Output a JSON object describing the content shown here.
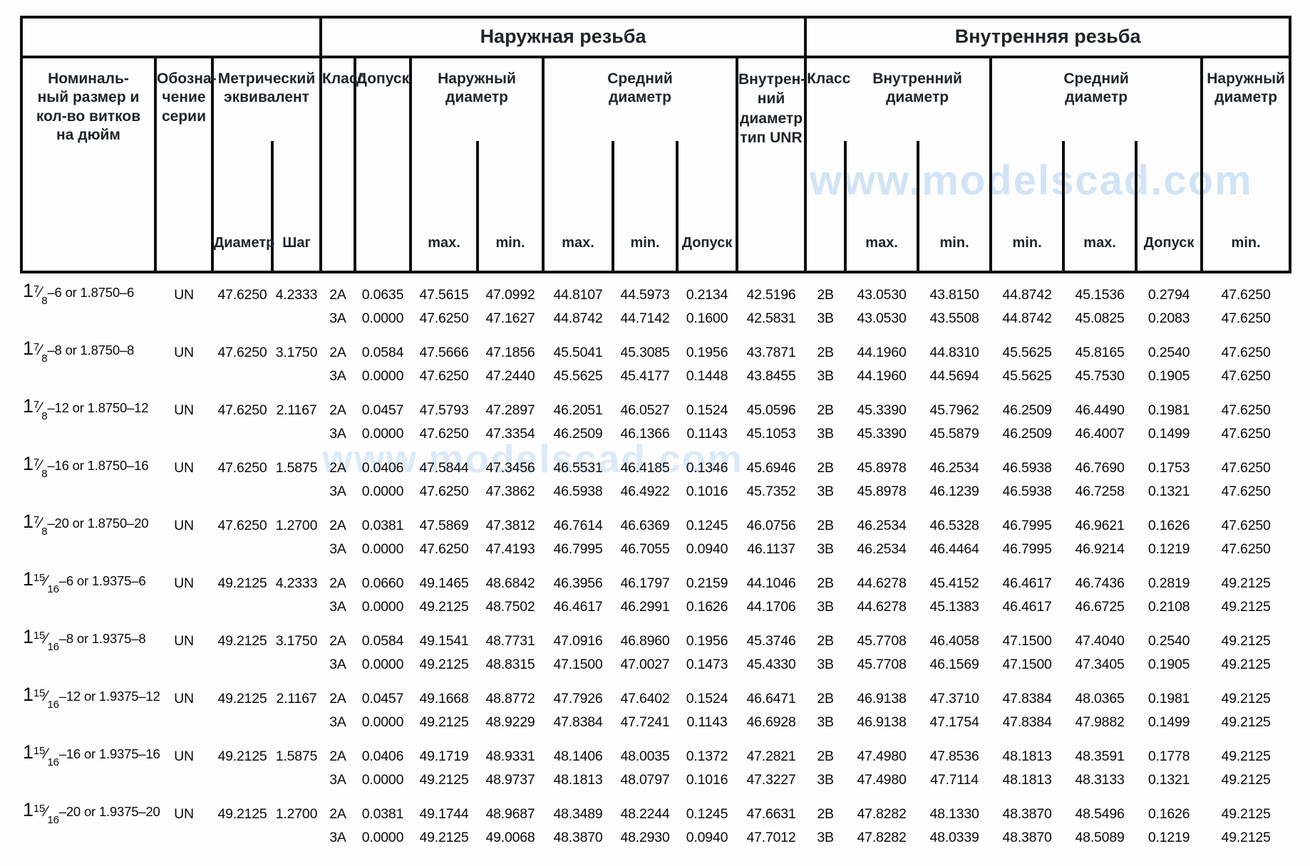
{
  "watermark": {
    "text": "www.modelscad.com",
    "color": "#a6cbee"
  },
  "header": {
    "external": "Наружная резьба",
    "internal": "Внутренняя резьба",
    "nominal_size": "Номиналь-\nный размер и\nкол-во витков\nна дюйм",
    "series": "Обозна-\nчение\nсерии",
    "metric": "Метрический\nэквивалент",
    "diameter_label": "Диаметр",
    "pitch_label": "Шаг",
    "class_label": "Класс",
    "tolerance_label": "Допуск",
    "ext_major": "Наружный\nдиаметр",
    "ext_pitch": "Средний\nдиаметр",
    "unr": "Внутрен-\nний\nдиаметр\nтип UNR",
    "int_minor": "Внутренний\nдиаметр",
    "int_pitch": "Средний\nдиаметр",
    "int_major": "Наружный\nдиаметр",
    "max": "max.",
    "min": "min."
  },
  "rows": [
    {
      "size": {
        "whole": "1",
        "num": "7",
        "den": "8",
        "suffix": "–6 or 1.8750–6"
      },
      "series": "UN",
      "metric_diameter": "47.6250",
      "metric_pitch": "4.2333",
      "lines": [
        {
          "ext_class": "2A",
          "ext_tol": "0.0635",
          "ext_major_max": "47.5615",
          "ext_major_min": "47.0992",
          "ext_pitch_max": "44.8107",
          "ext_pitch_min": "44.5973",
          "ext_pitch_tol": "0.2134",
          "ext_minor_unr": "42.5196",
          "int_class": "2B",
          "int_minor_max": "43.0530",
          "int_minor_min": "43.8150",
          "int_pitch_min": "44.8742",
          "int_pitch_max": "45.1536",
          "int_pitch_tol": "0.2794",
          "int_major_min": "47.6250"
        },
        {
          "ext_class": "3A",
          "ext_tol": "0.0000",
          "ext_major_max": "47.6250",
          "ext_major_min": "47.1627",
          "ext_pitch_max": "44.8742",
          "ext_pitch_min": "44.7142",
          "ext_pitch_tol": "0.1600",
          "ext_minor_unr": "42.5831",
          "int_class": "3B",
          "int_minor_max": "43.0530",
          "int_minor_min": "43.5508",
          "int_pitch_min": "44.8742",
          "int_pitch_max": "45.0825",
          "int_pitch_tol": "0.2083",
          "int_major_min": "47.6250"
        }
      ]
    },
    {
      "size": {
        "whole": "1",
        "num": "7",
        "den": "8",
        "suffix": "–8 or 1.8750–8"
      },
      "series": "UN",
      "metric_diameter": "47.6250",
      "metric_pitch": "3.1750",
      "lines": [
        {
          "ext_class": "2A",
          "ext_tol": "0.0584",
          "ext_major_max": "47.5666",
          "ext_major_min": "47.1856",
          "ext_pitch_max": "45.5041",
          "ext_pitch_min": "45.3085",
          "ext_pitch_tol": "0.1956",
          "ext_minor_unr": "43.7871",
          "int_class": "2B",
          "int_minor_max": "44.1960",
          "int_minor_min": "44.8310",
          "int_pitch_min": "45.5625",
          "int_pitch_max": "45.8165",
          "int_pitch_tol": "0.2540",
          "int_major_min": "47.6250"
        },
        {
          "ext_class": "3A",
          "ext_tol": "0.0000",
          "ext_major_max": "47.6250",
          "ext_major_min": "47.2440",
          "ext_pitch_max": "45.5625",
          "ext_pitch_min": "45.4177",
          "ext_pitch_tol": "0.1448",
          "ext_minor_unr": "43.8455",
          "int_class": "3B",
          "int_minor_max": "44.1960",
          "int_minor_min": "44.5694",
          "int_pitch_min": "45.5625",
          "int_pitch_max": "45.7530",
          "int_pitch_tol": "0.1905",
          "int_major_min": "47.6250"
        }
      ]
    },
    {
      "size": {
        "whole": "1",
        "num": "7",
        "den": "8",
        "suffix": "–12 or 1.8750–12"
      },
      "series": "UN",
      "metric_diameter": "47.6250",
      "metric_pitch": "2.1167",
      "lines": [
        {
          "ext_class": "2A",
          "ext_tol": "0.0457",
          "ext_major_max": "47.5793",
          "ext_major_min": "47.2897",
          "ext_pitch_max": "46.2051",
          "ext_pitch_min": "46.0527",
          "ext_pitch_tol": "0.1524",
          "ext_minor_unr": "45.0596",
          "int_class": "2B",
          "int_minor_max": "45.3390",
          "int_minor_min": "45.7962",
          "int_pitch_min": "46.2509",
          "int_pitch_max": "46.4490",
          "int_pitch_tol": "0.1981",
          "int_major_min": "47.6250"
        },
        {
          "ext_class": "3A",
          "ext_tol": "0.0000",
          "ext_major_max": "47.6250",
          "ext_major_min": "47.3354",
          "ext_pitch_max": "46.2509",
          "ext_pitch_min": "46.1366",
          "ext_pitch_tol": "0.1143",
          "ext_minor_unr": "45.1053",
          "int_class": "3B",
          "int_minor_max": "45.3390",
          "int_minor_min": "45.5879",
          "int_pitch_min": "46.2509",
          "int_pitch_max": "46.4007",
          "int_pitch_tol": "0.1499",
          "int_major_min": "47.6250"
        }
      ]
    },
    {
      "size": {
        "whole": "1",
        "num": "7",
        "den": "8",
        "suffix": "–16 or 1.8750–16"
      },
      "series": "UN",
      "metric_diameter": "47.6250",
      "metric_pitch": "1.5875",
      "lines": [
        {
          "ext_class": "2A",
          "ext_tol": "0.0406",
          "ext_major_max": "47.5844",
          "ext_major_min": "47.3456",
          "ext_pitch_max": "46.5531",
          "ext_pitch_min": "46.4185",
          "ext_pitch_tol": "0.1346",
          "ext_minor_unr": "45.6946",
          "int_class": "2B",
          "int_minor_max": "45.8978",
          "int_minor_min": "46.2534",
          "int_pitch_min": "46.5938",
          "int_pitch_max": "46.7690",
          "int_pitch_tol": "0.1753",
          "int_major_min": "47.6250"
        },
        {
          "ext_class": "3A",
          "ext_tol": "0.0000",
          "ext_major_max": "47.6250",
          "ext_major_min": "47.3862",
          "ext_pitch_max": "46.5938",
          "ext_pitch_min": "46.4922",
          "ext_pitch_tol": "0.1016",
          "ext_minor_unr": "45.7352",
          "int_class": "3B",
          "int_minor_max": "45.8978",
          "int_minor_min": "46.1239",
          "int_pitch_min": "46.5938",
          "int_pitch_max": "46.7258",
          "int_pitch_tol": "0.1321",
          "int_major_min": "47.6250"
        }
      ]
    },
    {
      "size": {
        "whole": "1",
        "num": "7",
        "den": "8",
        "suffix": "–20 or 1.8750–20"
      },
      "series": "UN",
      "metric_diameter": "47.6250",
      "metric_pitch": "1.2700",
      "lines": [
        {
          "ext_class": "2A",
          "ext_tol": "0.0381",
          "ext_major_max": "47.5869",
          "ext_major_min": "47.3812",
          "ext_pitch_max": "46.7614",
          "ext_pitch_min": "46.6369",
          "ext_pitch_tol": "0.1245",
          "ext_minor_unr": "46.0756",
          "int_class": "2B",
          "int_minor_max": "46.2534",
          "int_minor_min": "46.5328",
          "int_pitch_min": "46.7995",
          "int_pitch_max": "46.9621",
          "int_pitch_tol": "0.1626",
          "int_major_min": "47.6250"
        },
        {
          "ext_class": "3A",
          "ext_tol": "0.0000",
          "ext_major_max": "47.6250",
          "ext_major_min": "47.4193",
          "ext_pitch_max": "46.7995",
          "ext_pitch_min": "46.7055",
          "ext_pitch_tol": "0.0940",
          "ext_minor_unr": "46.1137",
          "int_class": "3B",
          "int_minor_max": "46.2534",
          "int_minor_min": "46.4464",
          "int_pitch_min": "46.7995",
          "int_pitch_max": "46.9214",
          "int_pitch_tol": "0.1219",
          "int_major_min": "47.6250"
        }
      ]
    },
    {
      "size": {
        "whole": "1",
        "num": "15",
        "den": "16",
        "suffix": "–6 or 1.9375–6"
      },
      "series": "UN",
      "metric_diameter": "49.2125",
      "metric_pitch": "4.2333",
      "lines": [
        {
          "ext_class": "2A",
          "ext_tol": "0.0660",
          "ext_major_max": "49.1465",
          "ext_major_min": "48.6842",
          "ext_pitch_max": "46.3956",
          "ext_pitch_min": "46.1797",
          "ext_pitch_tol": "0.2159",
          "ext_minor_unr": "44.1046",
          "int_class": "2B",
          "int_minor_max": "44.6278",
          "int_minor_min": "45.4152",
          "int_pitch_min": "46.4617",
          "int_pitch_max": "46.7436",
          "int_pitch_tol": "0.2819",
          "int_major_min": "49.2125"
        },
        {
          "ext_class": "3A",
          "ext_tol": "0.0000",
          "ext_major_max": "49.2125",
          "ext_major_min": "48.7502",
          "ext_pitch_max": "46.4617",
          "ext_pitch_min": "46.2991",
          "ext_pitch_tol": "0.1626",
          "ext_minor_unr": "44.1706",
          "int_class": "3B",
          "int_minor_max": "44.6278",
          "int_minor_min": "45.1383",
          "int_pitch_min": "46.4617",
          "int_pitch_max": "46.6725",
          "int_pitch_tol": "0.2108",
          "int_major_min": "49.2125"
        }
      ]
    },
    {
      "size": {
        "whole": "1",
        "num": "15",
        "den": "16",
        "suffix": "–8 or 1.9375–8"
      },
      "series": "UN",
      "metric_diameter": "49.2125",
      "metric_pitch": "3.1750",
      "lines": [
        {
          "ext_class": "2A",
          "ext_tol": "0.0584",
          "ext_major_max": "49.1541",
          "ext_major_min": "48.7731",
          "ext_pitch_max": "47.0916",
          "ext_pitch_min": "46.8960",
          "ext_pitch_tol": "0.1956",
          "ext_minor_unr": "45.3746",
          "int_class": "2B",
          "int_minor_max": "45.7708",
          "int_minor_min": "46.4058",
          "int_pitch_min": "47.1500",
          "int_pitch_max": "47.4040",
          "int_pitch_tol": "0.2540",
          "int_major_min": "49.2125"
        },
        {
          "ext_class": "3A",
          "ext_tol": "0.0000",
          "ext_major_max": "49.2125",
          "ext_major_min": "48.8315",
          "ext_pitch_max": "47.1500",
          "ext_pitch_min": "47.0027",
          "ext_pitch_tol": "0.1473",
          "ext_minor_unr": "45.4330",
          "int_class": "3B",
          "int_minor_max": "45.7708",
          "int_minor_min": "46.1569",
          "int_pitch_min": "47.1500",
          "int_pitch_max": "47.3405",
          "int_pitch_tol": "0.1905",
          "int_major_min": "49.2125"
        }
      ]
    },
    {
      "size": {
        "whole": "1",
        "num": "15",
        "den": "16",
        "suffix": "–12 or 1.9375–12"
      },
      "series": "UN",
      "metric_diameter": "49.2125",
      "metric_pitch": "2.1167",
      "lines": [
        {
          "ext_class": "2A",
          "ext_tol": "0.0457",
          "ext_major_max": "49.1668",
          "ext_major_min": "48.8772",
          "ext_pitch_max": "47.7926",
          "ext_pitch_min": "47.6402",
          "ext_pitch_tol": "0.1524",
          "ext_minor_unr": "46.6471",
          "int_class": "2B",
          "int_minor_max": "46.9138",
          "int_minor_min": "47.3710",
          "int_pitch_min": "47.8384",
          "int_pitch_max": "48.0365",
          "int_pitch_tol": "0.1981",
          "int_major_min": "49.2125"
        },
        {
          "ext_class": "3A",
          "ext_tol": "0.0000",
          "ext_major_max": "49.2125",
          "ext_major_min": "48.9229",
          "ext_pitch_max": "47.8384",
          "ext_pitch_min": "47.7241",
          "ext_pitch_tol": "0.1143",
          "ext_minor_unr": "46.6928",
          "int_class": "3B",
          "int_minor_max": "46.9138",
          "int_minor_min": "47.1754",
          "int_pitch_min": "47.8384",
          "int_pitch_max": "47.9882",
          "int_pitch_tol": "0.1499",
          "int_major_min": "49.2125"
        }
      ]
    },
    {
      "size": {
        "whole": "1",
        "num": "15",
        "den": "16",
        "suffix": "–16 or 1.9375–16"
      },
      "series": "UN",
      "metric_diameter": "49.2125",
      "metric_pitch": "1.5875",
      "lines": [
        {
          "ext_class": "2A",
          "ext_tol": "0.0406",
          "ext_major_max": "49.1719",
          "ext_major_min": "48.9331",
          "ext_pitch_max": "48.1406",
          "ext_pitch_min": "48.0035",
          "ext_pitch_tol": "0.1372",
          "ext_minor_unr": "47.2821",
          "int_class": "2B",
          "int_minor_max": "47.4980",
          "int_minor_min": "47.8536",
          "int_pitch_min": "48.1813",
          "int_pitch_max": "48.3591",
          "int_pitch_tol": "0.1778",
          "int_major_min": "49.2125"
        },
        {
          "ext_class": "3A",
          "ext_tol": "0.0000",
          "ext_major_max": "49.2125",
          "ext_major_min": "48.9737",
          "ext_pitch_max": "48.1813",
          "ext_pitch_min": "48.0797",
          "ext_pitch_tol": "0.1016",
          "ext_minor_unr": "47.3227",
          "int_class": "3B",
          "int_minor_max": "47.4980",
          "int_minor_min": "47.7114",
          "int_pitch_min": "48.1813",
          "int_pitch_max": "48.3133",
          "int_pitch_tol": "0.1321",
          "int_major_min": "49.2125"
        }
      ]
    },
    {
      "size": {
        "whole": "1",
        "num": "15",
        "den": "16",
        "suffix": "–20 or 1.9375–20"
      },
      "series": "UN",
      "metric_diameter": "49.2125",
      "metric_pitch": "1.2700",
      "lines": [
        {
          "ext_class": "2A",
          "ext_tol": "0.0381",
          "ext_major_max": "49.1744",
          "ext_major_min": "48.9687",
          "ext_pitch_max": "48.3489",
          "ext_pitch_min": "48.2244",
          "ext_pitch_tol": "0.1245",
          "ext_minor_unr": "47.6631",
          "int_class": "2B",
          "int_minor_max": "47.8282",
          "int_minor_min": "48.1330",
          "int_pitch_min": "48.3870",
          "int_pitch_max": "48.5496",
          "int_pitch_tol": "0.1626",
          "int_major_min": "49.2125"
        },
        {
          "ext_class": "3A",
          "ext_tol": "0.0000",
          "ext_major_max": "49.2125",
          "ext_major_min": "49.0068",
          "ext_pitch_max": "48.3870",
          "ext_pitch_min": "48.2930",
          "ext_pitch_tol": "0.0940",
          "ext_minor_unr": "47.7012",
          "int_class": "3B",
          "int_minor_max": "47.8282",
          "int_minor_min": "48.0339",
          "int_pitch_min": "48.3870",
          "int_pitch_max": "48.5089",
          "int_pitch_tol": "0.1219",
          "int_major_min": "49.2125"
        }
      ]
    }
  ]
}
